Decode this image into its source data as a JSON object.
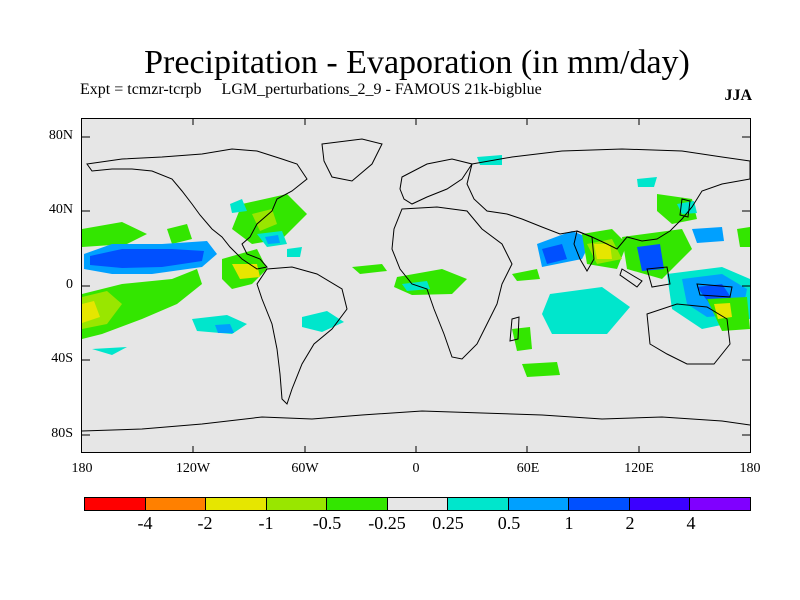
{
  "title": "Precipitation - Evaporation (in mm/day)",
  "subtitle": "Expt = tcmzr-tcrpb     LGM_perturbations_2_9 - FAMOUS 21k-bigblue",
  "season": "JJA",
  "map": {
    "projection": "cylindrical equidistant",
    "lat_labels": [
      "80N",
      "40N",
      "0",
      "40S",
      "80S"
    ],
    "lon_labels": [
      "180",
      "120W",
      "60W",
      "0",
      "60E",
      "120E",
      "180"
    ],
    "background_color": "#e6e6e6"
  },
  "colorbar": {
    "colors": [
      "#ff0000",
      "#ff8000",
      "#e6e600",
      "#99e600",
      "#33e600",
      "#e6e6e6",
      "#00e6cc",
      "#00a0ff",
      "#0050ff",
      "#3c00ff",
      "#8000ff"
    ],
    "labels": [
      "-4",
      "-2",
      "-1",
      "-0.5",
      "-0.25",
      "0.25",
      "0.5",
      "1",
      "2",
      "4"
    ]
  }
}
